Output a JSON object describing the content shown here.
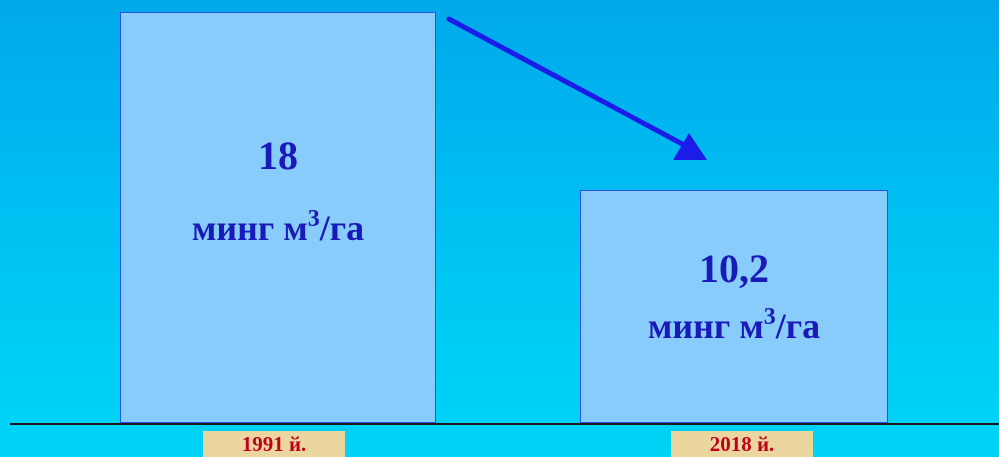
{
  "chart_data": {
    "type": "bar",
    "categories": [
      "1991 й.",
      "2018 й."
    ],
    "values": [
      18,
      10.2
    ],
    "value_labels": [
      "18",
      "10,2"
    ],
    "unit": "минг м³/га",
    "unit_parts": {
      "prefix": "минг м",
      "superscript": "3",
      "suffix": "/га"
    },
    "ylim": [
      0,
      18
    ],
    "grid": false,
    "legend": "none",
    "trend_arrow": {
      "from": "1991 й.",
      "to": "2018 й.",
      "direction": "down"
    }
  },
  "colors": {
    "background": "#00bfef",
    "bar_fill": "#88ccfc",
    "bar_border": "#2b52e6",
    "value_text": "#1a1ab8",
    "arrow": "#1c1ce8",
    "label_background": "#ecd6a0",
    "label_text": "#c0001a",
    "baseline": "#1b1b1b"
  }
}
